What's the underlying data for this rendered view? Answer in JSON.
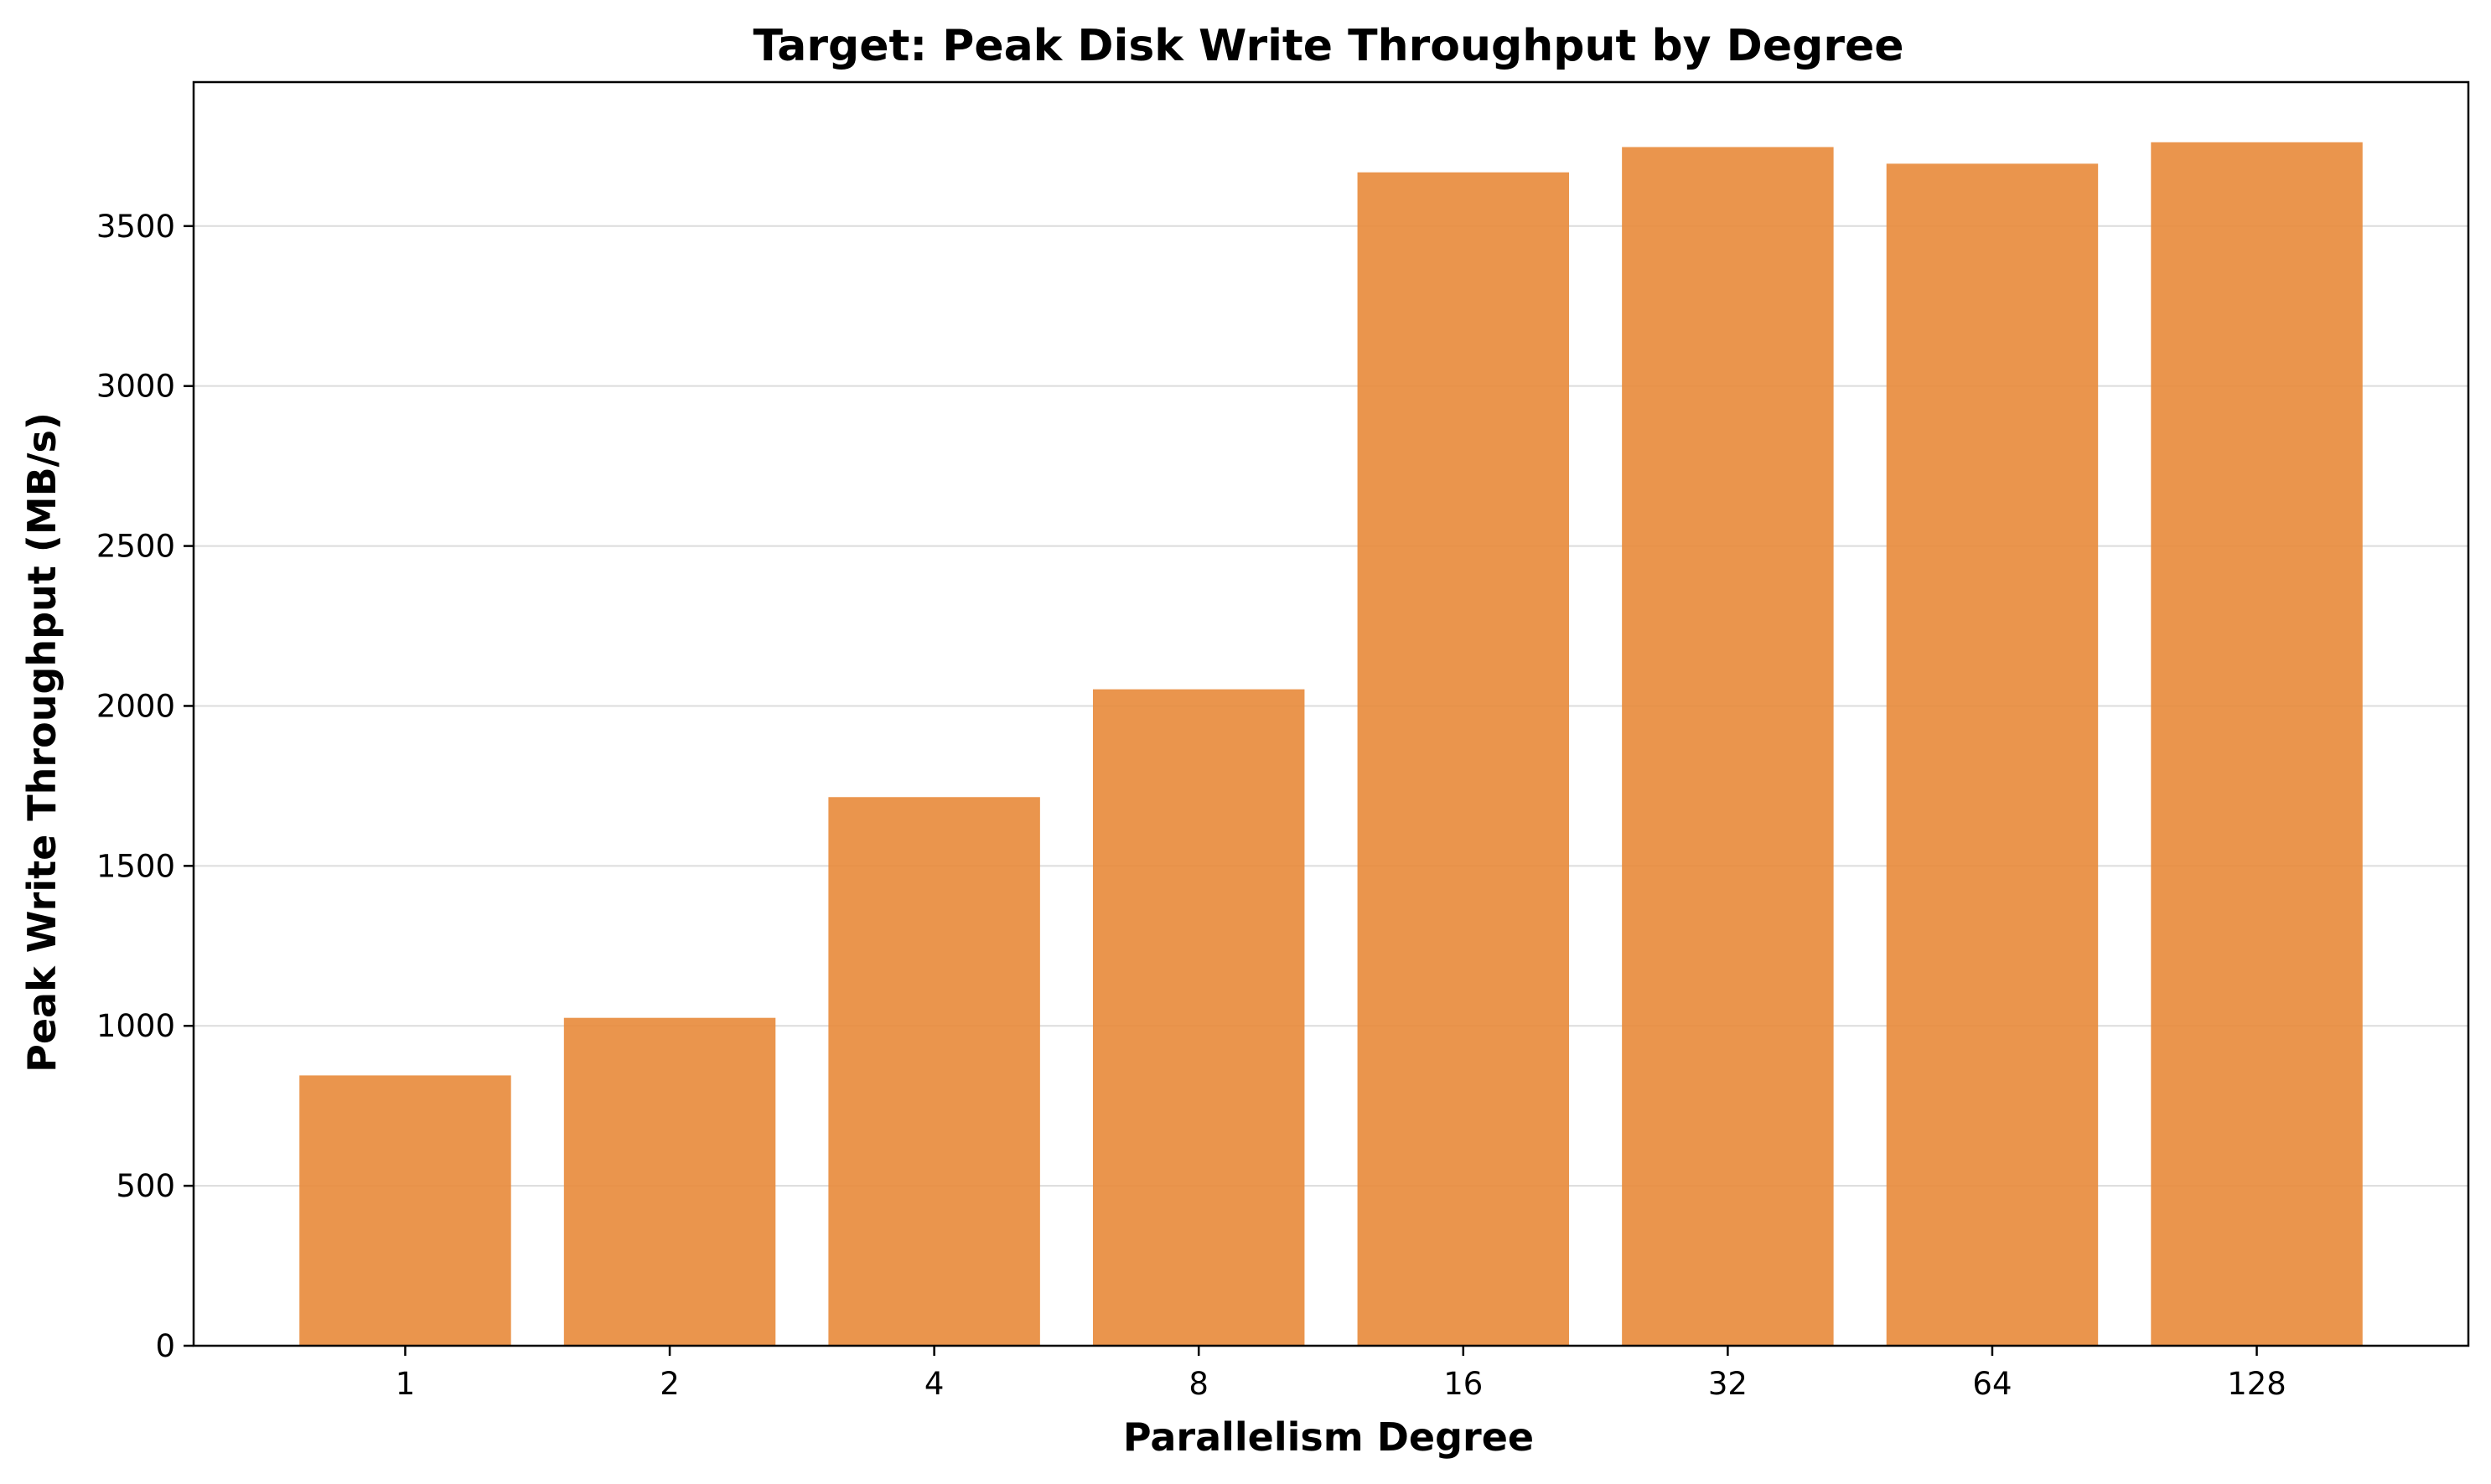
{
  "chart_data": {
    "type": "bar",
    "title": "Target: Peak Disk Write Throughput by Degree",
    "xlabel": "Parallelism Degree",
    "ylabel": "Peak Write Throughput (MB/s)",
    "categories": [
      "1",
      "2",
      "4",
      "8",
      "16",
      "32",
      "64",
      "128"
    ],
    "values": [
      845,
      1025,
      1715,
      2052,
      3668,
      3747,
      3695,
      3762
    ],
    "ylim": [
      0,
      3950
    ],
    "yticks": [
      0,
      500,
      1000,
      1500,
      2000,
      2500,
      3000,
      3500
    ],
    "ytick_labels": [
      "0",
      "500",
      "1000",
      "1500",
      "2000",
      "2500",
      "3000",
      "3500"
    ],
    "grid": "y",
    "bar_color": "#E8893A",
    "bar_opacity": 0.9
  }
}
